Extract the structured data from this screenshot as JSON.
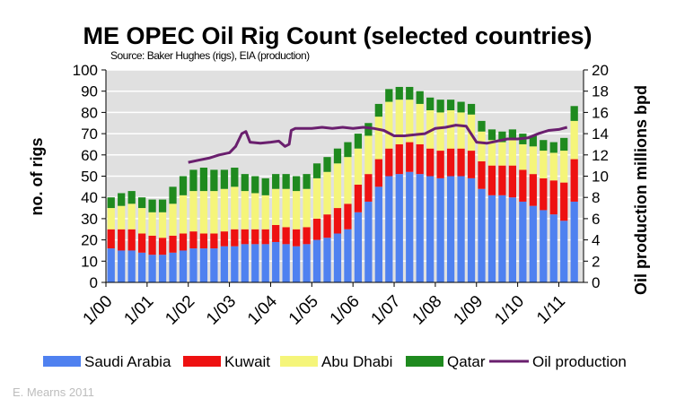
{
  "chart_data": {
    "type": "bar",
    "stacked": true,
    "title": "ME OPEC Oil Rig Count (selected countries)",
    "subtitle": "Source: Baker Hughes (rigs), EIA (production)",
    "ylabel": "no. of rigs",
    "y2label": "Oil production millions bpd",
    "ylim": [
      0,
      100
    ],
    "y2lim": [
      0,
      20
    ],
    "yticks": [
      0,
      10,
      20,
      30,
      40,
      50,
      60,
      70,
      80,
      90,
      100
    ],
    "y2ticks": [
      0,
      2,
      4,
      6,
      8,
      10,
      12,
      14,
      16,
      18,
      20
    ],
    "x_ticklabels": [
      "1/00",
      "1/01",
      "1/02",
      "1/03",
      "1/04",
      "1/05",
      "1/06",
      "1/07",
      "1/08",
      "1/09",
      "1/10",
      "1/11"
    ],
    "grid": true,
    "legend_position": "bottom",
    "credit": "E. Mearns 2011",
    "x_years": [
      2000,
      2000.25,
      2000.5,
      2000.75,
      2001,
      2001.25,
      2001.5,
      2001.75,
      2002,
      2002.25,
      2002.5,
      2002.75,
      2003,
      2003.25,
      2003.5,
      2003.75,
      2004,
      2004.25,
      2004.5,
      2004.75,
      2005,
      2005.25,
      2005.5,
      2005.75,
      2006,
      2006.25,
      2006.5,
      2006.75,
      2007,
      2007.25,
      2007.5,
      2007.75,
      2008,
      2008.25,
      2008.5,
      2008.75,
      2009,
      2009.25,
      2009.5,
      2009.75,
      2010,
      2010.25,
      2010.5,
      2010.75,
      2011,
      2011.25
    ],
    "series": [
      {
        "name": "Saudi Arabia",
        "type": "bar",
        "color": "#4f81f0",
        "values": [
          16,
          15,
          15,
          14,
          13,
          13,
          14,
          15,
          16,
          16,
          16,
          17,
          17,
          18,
          18,
          18,
          19,
          18,
          17,
          18,
          20,
          21,
          23,
          25,
          33,
          38,
          45,
          50,
          51,
          52,
          51,
          50,
          49,
          50,
          50,
          49,
          44,
          41,
          41,
          40,
          38,
          36,
          34,
          32,
          29,
          38
        ]
      },
      {
        "name": "Kuwait",
        "type": "bar",
        "color": "#ee1111",
        "values": [
          9,
          10,
          10,
          9,
          9,
          8,
          8,
          8,
          8,
          7,
          7,
          7,
          8,
          7,
          7,
          7,
          8,
          8,
          8,
          8,
          10,
          11,
          12,
          12,
          13,
          13,
          13,
          13,
          14,
          14,
          14,
          13,
          13,
          13,
          13,
          13,
          13,
          14,
          14,
          15,
          15,
          15,
          15,
          16,
          18,
          20
        ]
      },
      {
        "name": "Abu Dhabi",
        "type": "bar",
        "color": "#f5f57a",
        "values": [
          10,
          11,
          12,
          12,
          11,
          12,
          15,
          18,
          19,
          20,
          20,
          20,
          20,
          18,
          17,
          16,
          17,
          18,
          18,
          18,
          19,
          20,
          21,
          22,
          17,
          18,
          20,
          22,
          21,
          20,
          19,
          18,
          18,
          18,
          17,
          17,
          14,
          12,
          11,
          12,
          12,
          13,
          13,
          13,
          15,
          18
        ]
      },
      {
        "name": "Qatar",
        "type": "bar",
        "color": "#1f8a1f",
        "values": [
          5,
          6,
          6,
          5,
          6,
          6,
          8,
          9,
          10,
          11,
          10,
          9,
          9,
          8,
          8,
          8,
          7,
          7,
          7,
          7,
          7,
          7,
          7,
          7,
          7,
          6,
          6,
          6,
          6,
          6,
          6,
          6,
          6,
          5,
          5,
          5,
          5,
          5,
          5,
          5,
          5,
          5,
          5,
          5,
          6,
          7
        ]
      },
      {
        "name": "Oil production",
        "type": "line",
        "axis": "right",
        "color": "#6a1f6e",
        "x": [
          2002.0,
          2002.25,
          2002.5,
          2002.75,
          2003.0,
          2003.15,
          2003.3,
          2003.4,
          2003.5,
          2003.75,
          2004.0,
          2004.2,
          2004.35,
          2004.45,
          2004.5,
          2004.6,
          2005.0,
          2005.25,
          2005.5,
          2005.75,
          2006.0,
          2006.25,
          2006.5,
          2006.75,
          2007.0,
          2007.25,
          2007.5,
          2007.75,
          2008.0,
          2008.25,
          2008.5,
          2008.75,
          2009.0,
          2009.25,
          2009.5,
          2009.75,
          2010.0,
          2010.25,
          2010.5,
          2010.75,
          2011.0,
          2011.2
        ],
        "values": [
          11.3,
          11.5,
          11.7,
          12.0,
          12.2,
          12.8,
          14.0,
          14.2,
          13.2,
          13.1,
          13.2,
          13.3,
          12.8,
          13.0,
          14.3,
          14.5,
          14.5,
          14.6,
          14.5,
          14.6,
          14.5,
          14.6,
          14.5,
          14.3,
          13.8,
          13.8,
          13.9,
          14.0,
          14.5,
          14.6,
          14.8,
          14.7,
          13.2,
          13.1,
          13.3,
          13.5,
          13.5,
          13.6,
          14.0,
          14.3,
          14.4,
          14.6
        ]
      }
    ]
  }
}
